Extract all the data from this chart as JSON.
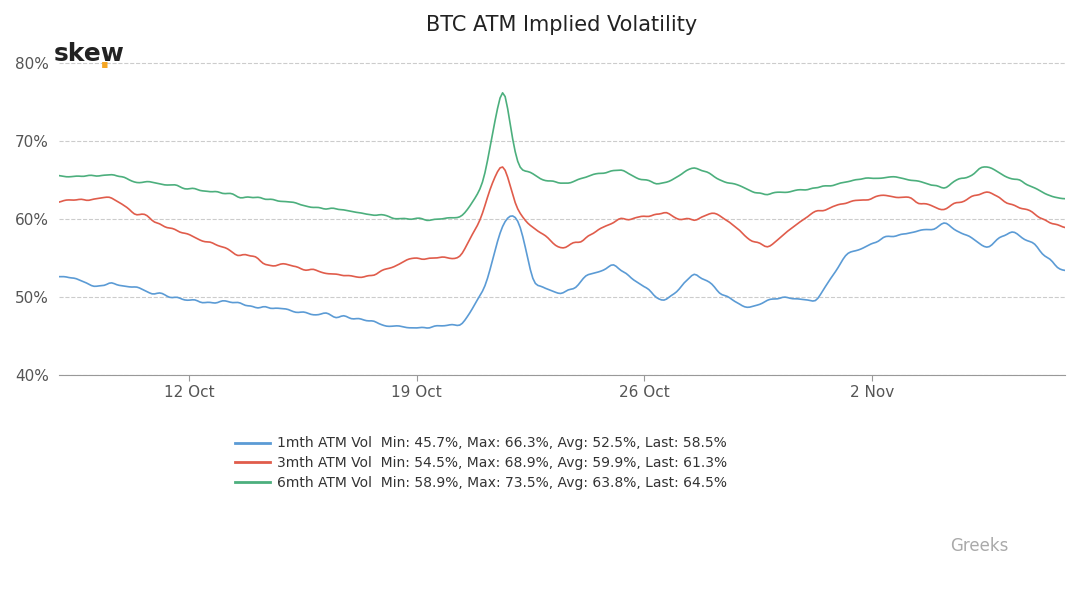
{
  "title": "BTC ATM Implied Volatility",
  "ylim": [
    40,
    82
  ],
  "yticks": [
    40,
    50,
    60,
    70,
    80
  ],
  "ytick_labels": [
    "40%",
    "50%",
    "60%",
    "70%",
    "80%"
  ],
  "xlabel_ticks": [
    "12 Oct",
    "19 Oct",
    "26 Oct",
    "2 Nov"
  ],
  "colors": {
    "1mth": "#5B9BD5",
    "3mth": "#E05C4B",
    "6mth": "#4CAF7D"
  },
  "legend": [
    {
      "label": "1mth ATM Vol",
      "stats": "Min: 45.7%, Max: 66.3%, Avg: 52.5%, Last: 58.5%",
      "color": "#5B9BD5"
    },
    {
      "label": "3mth ATM Vol",
      "stats": "Min: 54.5%, Max: 68.9%, Avg: 59.9%, Last: 61.3%",
      "color": "#E05C4B"
    },
    {
      "label": "6mth ATM Vol",
      "stats": "Min: 58.9%, Max: 73.5%, Avg: 63.8%, Last: 64.5%",
      "color": "#4CAF7D"
    }
  ],
  "background_color": "#FFFFFF",
  "grid_color": "#CCCCCC",
  "skew_text": "skew",
  "skew_dot_color": "#F5A623",
  "greeks_text": "Greeks"
}
